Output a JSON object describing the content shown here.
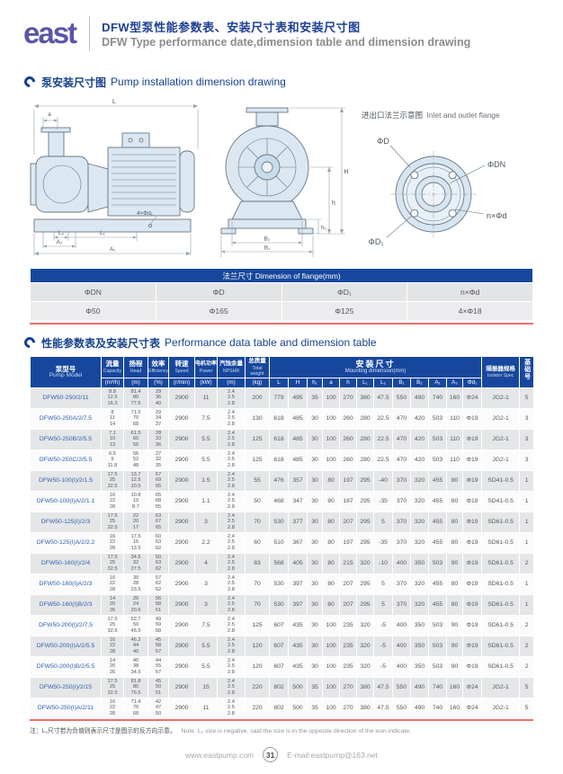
{
  "header": {
    "logo_text": "east",
    "title_cn": "DFW型泵性能参数表、安装尺寸表和安装尺寸图",
    "title_en": "DFW Type performance date,dimension table and dimension drawing"
  },
  "section1": {
    "title_cn": "泵安装尺寸图",
    "title_en": "Pump installation dimension drawing"
  },
  "section2": {
    "title_cn": "性能参数表及安装尺寸表",
    "title_en": "Performance data table and dimension table"
  },
  "drawing": {
    "flange_title_cn": "进出口法兰示意图",
    "flange_title_en": "Inlet and outlet flange",
    "labels": {
      "L": "L",
      "a": "a",
      "holes": "4×Φd₁",
      "L2": "L₂",
      "L1": "L₁",
      "A2": "A₂",
      "A1": "A₁",
      "H": "H",
      "h": "h",
      "h1": "h₁",
      "B2": "B₂",
      "B1": "B₁",
      "phiD": "ΦD",
      "phiDN": "ΦDN",
      "nphid": "n×Φd",
      "phiD1": "ΦD₁"
    }
  },
  "flange_table": {
    "title": "法兰尺寸 Dimension of flange(mm)",
    "headers": [
      "ΦDN",
      "ΦD",
      "ΦD₁",
      "n×Φd"
    ],
    "values": [
      "Φ50",
      "Φ165",
      "Φ125",
      "4×Φ18"
    ]
  },
  "performance_table": {
    "col_model_cn": "泵型号",
    "col_model_en": "Pump Model",
    "cols": [
      {
        "cn": "流量",
        "en": "Capacity",
        "unit": "(m³/h)"
      },
      {
        "cn": "扬程",
        "en": "Head",
        "unit": "(m)"
      },
      {
        "cn": "效率",
        "en": "Efficiency",
        "unit": "(%)"
      },
      {
        "cn": "转速",
        "en": "Speed",
        "unit": "(r/min)"
      },
      {
        "cn": "电机功率",
        "en": "Power",
        "unit": "(kW)"
      },
      {
        "cn": "汽蚀余量",
        "en": "NPSHR",
        "unit": "(m)"
      },
      {
        "cn": "总质量",
        "en": "Total weight",
        "unit": "(kg)"
      }
    ],
    "mounting_cn": "安装尺寸",
    "mounting_en": "Mounting dimension(mm)",
    "mounting_cols": [
      "L",
      "H",
      "h₁",
      "a",
      "h",
      "L₁",
      "L₂",
      "B₁",
      "B₂",
      "A₁",
      "A₂",
      "Φd₁"
    ],
    "isolator_cn": "隔振器规格",
    "isolator_en": "Isolator Spec",
    "base_cn": "基础号",
    "rows": [
      {
        "model": "DFW50-250/2/11",
        "capacity": [
          "8.8",
          "12.5",
          "16.3"
        ],
        "head": [
          "81.4",
          "80",
          "77.5"
        ],
        "eff": [
          "29",
          "36",
          "40"
        ],
        "speed": "2900",
        "power": "11",
        "npshr": [
          "2.4",
          "2.5",
          "2.8"
        ],
        "weight": "200",
        "dims": [
          "779",
          "495",
          "35",
          "100",
          "270",
          "380",
          "47.5",
          "550",
          "490",
          "740",
          "160",
          "Φ24"
        ],
        "isolator": "JG2-1",
        "base": "5"
      },
      {
        "model": "DFW50-250A/2/7.5",
        "capacity": [
          "8",
          "11",
          "14"
        ],
        "head": [
          "71.5",
          "70",
          "68"
        ],
        "eff": [
          "29",
          "34",
          "37"
        ],
        "speed": "2900",
        "power": "7.5",
        "npshr": [
          "2.4",
          "2.5",
          "2.8"
        ],
        "weight": "130",
        "dims": [
          "618",
          "485",
          "30",
          "100",
          "260",
          "280",
          "22.5",
          "470",
          "420",
          "503",
          "110",
          "Φ19"
        ],
        "isolator": "JG2-1",
        "base": "3"
      },
      {
        "model": "DFW50-250B/2/5.5",
        "capacity": [
          "7.1",
          "10",
          "13"
        ],
        "head": [
          "61.5",
          "60",
          "56"
        ],
        "eff": [
          "28",
          "33",
          "36"
        ],
        "speed": "2900",
        "power": "5.5",
        "npshr": [
          "2.4",
          "2.5",
          "2.8"
        ],
        "weight": "125",
        "dims": [
          "618",
          "485",
          "30",
          "100",
          "260",
          "280",
          "22.5",
          "470",
          "420",
          "503",
          "110",
          "Φ19"
        ],
        "isolator": "JG2-1",
        "base": "3"
      },
      {
        "model": "DFW50-250C/2/5.5",
        "capacity": [
          "6.5",
          "9",
          "11.8"
        ],
        "head": [
          "56",
          "52",
          "48"
        ],
        "eff": [
          "27",
          "32",
          "35"
        ],
        "speed": "2900",
        "power": "5.5",
        "npshr": [
          "2.4",
          "2.5",
          "2.8"
        ],
        "weight": "125",
        "dims": [
          "618",
          "485",
          "30",
          "100",
          "260",
          "280",
          "22.5",
          "470",
          "420",
          "503",
          "110",
          "Φ19"
        ],
        "isolator": "JG2-1",
        "base": "3"
      },
      {
        "model": "DFW50-100(I)/2/1.5",
        "capacity": [
          "17.5",
          "25",
          "32.5"
        ],
        "head": [
          "13.7",
          "12.5",
          "10.5"
        ],
        "eff": [
          "67",
          "69",
          "65"
        ],
        "speed": "2900",
        "power": "1.5",
        "npshr": [
          "2.4",
          "2.5",
          "2.8"
        ],
        "weight": "55",
        "dims": [
          "476",
          "357",
          "30",
          "80",
          "197",
          "295",
          "-40",
          "370",
          "320",
          "455",
          "80",
          "Φ19"
        ],
        "isolator": "SD41-0.5",
        "base": "1"
      },
      {
        "model": "DFW50-100(I)A/2/1.1",
        "capacity": [
          "16",
          "22",
          "28"
        ],
        "head": [
          "10.8",
          "10",
          "8.7"
        ],
        "eff": [
          "65",
          "68",
          "65"
        ],
        "speed": "2900",
        "power": "1.1",
        "npshr": [
          "2.4",
          "2.5",
          "2.8"
        ],
        "weight": "50",
        "dims": [
          "468",
          "347",
          "30",
          "80",
          "187",
          "295",
          "-35",
          "370",
          "320",
          "455",
          "80",
          "Φ19"
        ],
        "isolator": "SD41-0.5",
        "base": "1"
      },
      {
        "model": "DFW50-125(I)/2/3",
        "capacity": [
          "17.5",
          "25",
          "32.5"
        ],
        "head": [
          "22",
          "20",
          "17"
        ],
        "eff": [
          "63",
          "67",
          "65"
        ],
        "speed": "2900",
        "power": "3",
        "npshr": [
          "2.4",
          "2.5",
          "2.8"
        ],
        "weight": "70",
        "dims": [
          "530",
          "377",
          "30",
          "80",
          "207",
          "295",
          "5",
          "370",
          "320",
          "455",
          "80",
          "Φ19"
        ],
        "isolator": "SD61-0.5",
        "base": "1"
      },
      {
        "model": "DFW50-125(I)A/2/2.2",
        "capacity": [
          "16",
          "22",
          "28"
        ],
        "head": [
          "17.5",
          "16",
          "13.5"
        ],
        "eff": [
          "60",
          "63",
          "62"
        ],
        "speed": "2900",
        "power": "2.2",
        "npshr": [
          "2.4",
          "2.5",
          "2.8"
        ],
        "weight": "60",
        "dims": [
          "510",
          "367",
          "30",
          "80",
          "197",
          "295",
          "-35",
          "370",
          "320",
          "455",
          "80",
          "Φ19"
        ],
        "isolator": "SD61-0.5",
        "base": "1"
      },
      {
        "model": "DFW50-160(I)/2/4",
        "capacity": [
          "17.5",
          "25",
          "32.5"
        ],
        "head": [
          "34.5",
          "32",
          "27.5"
        ],
        "eff": [
          "50",
          "63",
          "62"
        ],
        "speed": "2900",
        "power": "4",
        "npshr": [
          "2.4",
          "2.5",
          "2.8"
        ],
        "weight": "83",
        "dims": [
          "568",
          "405",
          "30",
          "80",
          "215",
          "320",
          "-10",
          "400",
          "350",
          "503",
          "90",
          "Φ19"
        ],
        "isolator": "SD61-0.5",
        "base": "2"
      },
      {
        "model": "DFW50-160(I)A/2/3",
        "capacity": [
          "16",
          "22",
          "28"
        ],
        "head": [
          "30",
          "28",
          "23.5"
        ],
        "eff": [
          "57",
          "62",
          "62"
        ],
        "speed": "2900",
        "power": "3",
        "npshr": [
          "2.4",
          "2.5",
          "2.8"
        ],
        "weight": "70",
        "dims": [
          "530",
          "397",
          "30",
          "80",
          "207",
          "295",
          "5",
          "370",
          "320",
          "455",
          "80",
          "Φ19"
        ],
        "isolator": "SD61-0.5",
        "base": "1"
      },
      {
        "model": "DFW50-160(I)B/2/3",
        "capacity": [
          "14",
          "20",
          "26"
        ],
        "head": [
          "26",
          "24",
          "20.6"
        ],
        "eff": [
          "56",
          "58",
          "61"
        ],
        "speed": "2900",
        "power": "3",
        "npshr": [
          "2.4",
          "2.5",
          "2.8"
        ],
        "weight": "70",
        "dims": [
          "530",
          "397",
          "30",
          "80",
          "207",
          "295",
          "5",
          "370",
          "320",
          "455",
          "80",
          "Φ19"
        ],
        "isolator": "SD61-0.5",
        "base": "1"
      },
      {
        "model": "DFW50-200(I)/2/7.5",
        "capacity": [
          "17.5",
          "25",
          "32.5"
        ],
        "head": [
          "52.7",
          "50",
          "45.5"
        ],
        "eff": [
          "49",
          "59",
          "58"
        ],
        "speed": "2900",
        "power": "7.5",
        "npshr": [
          "2.4",
          "2.5",
          "2.8"
        ],
        "weight": "125",
        "dims": [
          "607",
          "435",
          "30",
          "100",
          "235",
          "320",
          "-5",
          "400",
          "350",
          "503",
          "90",
          "Φ19"
        ],
        "isolator": "SD61-0.5",
        "base": "2"
      },
      {
        "model": "DFW50-200(I)A/2/5.5",
        "capacity": [
          "16",
          "22",
          "28"
        ],
        "head": [
          "46.2",
          "44",
          "40"
        ],
        "eff": [
          "45",
          "58",
          "57"
        ],
        "speed": "2900",
        "power": "5.5",
        "npshr": [
          "2.4",
          "2.5",
          "2.8"
        ],
        "weight": "120",
        "dims": [
          "607",
          "435",
          "30",
          "100",
          "235",
          "320",
          "-5",
          "400",
          "350",
          "503",
          "90",
          "Φ19"
        ],
        "isolator": "SD61-0.5",
        "base": "2"
      },
      {
        "model": "DFW50-200(I)B/2/5.5",
        "capacity": [
          "14",
          "20",
          "26"
        ],
        "head": [
          "40",
          "38",
          "34.5"
        ],
        "eff": [
          "44",
          "55",
          "57"
        ],
        "speed": "2900",
        "power": "5.5",
        "npshr": [
          "2.4",
          "2.5",
          "2.8"
        ],
        "weight": "120",
        "dims": [
          "607",
          "435",
          "30",
          "100",
          "235",
          "320",
          "-5",
          "400",
          "350",
          "503",
          "90",
          "Φ19"
        ],
        "isolator": "SD61-0.5",
        "base": "2"
      },
      {
        "model": "DFW50-250(I)/2/15",
        "capacity": [
          "17.5",
          "25",
          "32.5"
        ],
        "head": [
          "81.8",
          "80",
          "76.5"
        ],
        "eff": [
          "45",
          "50",
          "51"
        ],
        "speed": "2900",
        "power": "15",
        "npshr": [
          "2.4",
          "2.5",
          "2.8"
        ],
        "weight": "220",
        "dims": [
          "802",
          "500",
          "35",
          "100",
          "270",
          "380",
          "47.5",
          "550",
          "490",
          "740",
          "160",
          "Φ24"
        ],
        "isolator": "JG2-1",
        "base": "5"
      },
      {
        "model": "DFW50-250(I)A/2/11",
        "capacity": [
          "16",
          "22",
          "28"
        ],
        "head": [
          "71.4",
          "70",
          "68"
        ],
        "eff": [
          "42",
          "47",
          "50"
        ],
        "speed": "2900",
        "power": "11",
        "npshr": [
          "2.4",
          "2.5",
          "2.8"
        ],
        "weight": "220",
        "dims": [
          "802",
          "500",
          "35",
          "100",
          "270",
          "380",
          "47.5",
          "550",
          "490",
          "740",
          "160",
          "Φ24"
        ],
        "isolator": "JG2-1",
        "base": "5"
      }
    ]
  },
  "note": {
    "cn": "注：L₂尺寸若为负值则表示尺寸是图示的反方向示意。",
    "en": "Note: L₂ size is negative, said the size is in the opposite direction of the icon indicate."
  },
  "footer": {
    "website": "www.eastpump.com",
    "page_number": "31",
    "email": "E-mail:eastpump@163.net"
  }
}
